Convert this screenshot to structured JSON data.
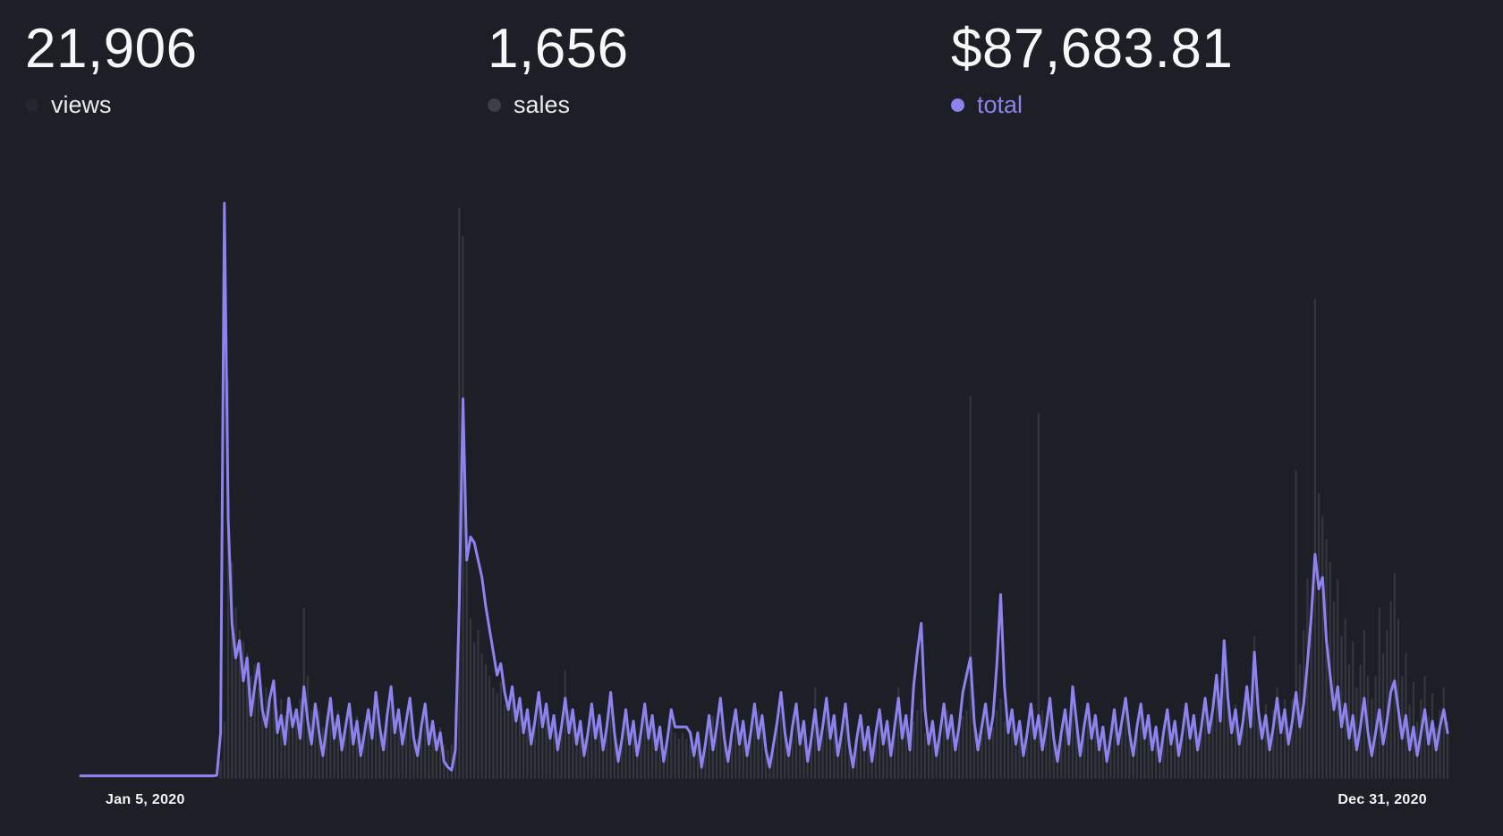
{
  "stats": [
    {
      "value": "21,906",
      "label": "views",
      "dot_color": "#25272e",
      "label_color": "#e9eaec"
    },
    {
      "value": "1,656",
      "label": "sales",
      "dot_color": "#3d3f48",
      "label_color": "#e9eaec"
    },
    {
      "value": "$87,683.81",
      "label": "total",
      "dot_color": "#8c82f0",
      "label_color": "#8c82ea"
    }
  ],
  "chart_data": {
    "type": "composed",
    "title": "",
    "legend": [
      "views",
      "sales",
      "total"
    ],
    "legend_position": "top",
    "grid": false,
    "x_axis": {
      "start_label": "Jan 5, 2020",
      "end_label": "Dec 31, 2020",
      "start_date": "2020-01-05",
      "end_date": "2020-12-31",
      "points": 362,
      "unit": "day"
    },
    "y_axis": {
      "visible": false,
      "note": "no y-axis ticks shown; series values digitized as percent of each series' own maximum"
    },
    "colors": {
      "views_bar": "#34363e",
      "total_line": "#8d82f0",
      "background": "#1d1f26"
    },
    "totals": {
      "views": 21906,
      "sales": 1656,
      "total_earned": "$87,683.81"
    },
    "series": [
      {
        "name": "views",
        "type": "bar",
        "values_pct_of_max": [
          0,
          0,
          0,
          0,
          0,
          0,
          0,
          0,
          0,
          0,
          0,
          0,
          0,
          0,
          0,
          0,
          0,
          0,
          0,
          0,
          0,
          0,
          0,
          0,
          0,
          0,
          0,
          0,
          0,
          0,
          0,
          0,
          0,
          0,
          0,
          0,
          0,
          3,
          10,
          70,
          38,
          30,
          26,
          24,
          22,
          18,
          20,
          16,
          14,
          16,
          13,
          15,
          12,
          14,
          11,
          13,
          10,
          12,
          14,
          30,
          18,
          12,
          10,
          12,
          9,
          11,
          13,
          10,
          12,
          8,
          10,
          12,
          9,
          11,
          8,
          10,
          12,
          9,
          13,
          10,
          8,
          11,
          13,
          9,
          11,
          8,
          10,
          12,
          9,
          7,
          10,
          12,
          8,
          10,
          7,
          9,
          6,
          5,
          6,
          12,
          100,
          95,
          40,
          28,
          24,
          26,
          22,
          20,
          18,
          16,
          15,
          17,
          13,
          12,
          14,
          11,
          13,
          10,
          12,
          9,
          11,
          14,
          10,
          12,
          9,
          11,
          8,
          10,
          19,
          12,
          11,
          8,
          10,
          7,
          9,
          12,
          8,
          10,
          7,
          9,
          12,
          8,
          6,
          8,
          11,
          7,
          9,
          6,
          8,
          11,
          7,
          9,
          6,
          8,
          5,
          7,
          10,
          8,
          7,
          8,
          7,
          6,
          5,
          7,
          4,
          6,
          9,
          11,
          8,
          10,
          7,
          5,
          7,
          10,
          6,
          8,
          5,
          7,
          10,
          12,
          9,
          6,
          4,
          6,
          9,
          12,
          8,
          5,
          8,
          11,
          6,
          9,
          5,
          7,
          16,
          9,
          8,
          11,
          7,
          9,
          5,
          7,
          10,
          6,
          4,
          6,
          9,
          5,
          8,
          4,
          7,
          10,
          6,
          8,
          5,
          8,
          16,
          10,
          9,
          6,
          10,
          12,
          14,
          8,
          6,
          8,
          5,
          7,
          10,
          12,
          10,
          7,
          9,
          11,
          12,
          67,
          14,
          8,
          9,
          11,
          7,
          9,
          12,
          14,
          10,
          8,
          10,
          6,
          8,
          5,
          8,
          10,
          8,
          64,
          12,
          9,
          12,
          8,
          6,
          8,
          11,
          7,
          13,
          9,
          6,
          9,
          11,
          7,
          10,
          6,
          8,
          5,
          7,
          11,
          6,
          9,
          12,
          8,
          5,
          8,
          11,
          7,
          10,
          6,
          8,
          5,
          7,
          10,
          6,
          9,
          5,
          8,
          11,
          7,
          10,
          8,
          10,
          13,
          10,
          14,
          18,
          12,
          20,
          15,
          10,
          13,
          9,
          12,
          16,
          11,
          25,
          15,
          10,
          13,
          8,
          12,
          16,
          11,
          14,
          9,
          14,
          54,
          20,
          26,
          35,
          30,
          84,
          50,
          46,
          42,
          38,
          31,
          35,
          25,
          28,
          20,
          24,
          16,
          20,
          26,
          18,
          14,
          18,
          30,
          22,
          26,
          31,
          36,
          28,
          18,
          22,
          13,
          17,
          10,
          14,
          18,
          11,
          15,
          9,
          12,
          16,
          10
        ]
      },
      {
        "name": "total",
        "type": "line",
        "values_pct_of_max": [
          0.5,
          0.5,
          0.5,
          0.5,
          0.5,
          0.5,
          0.5,
          0.5,
          0.5,
          0.5,
          0.5,
          0.5,
          0.5,
          0.5,
          0.5,
          0.5,
          0.5,
          0.5,
          0.5,
          0.5,
          0.5,
          0.5,
          0.5,
          0.5,
          0.5,
          0.5,
          0.5,
          0.5,
          0.5,
          0.5,
          0.5,
          0.5,
          0.5,
          0.5,
          0.5,
          0.5,
          0.6,
          8,
          100,
          45,
          27,
          21,
          24,
          17,
          21,
          11,
          16,
          20,
          12,
          9,
          14,
          17,
          8,
          11,
          6,
          14,
          9,
          12,
          7,
          16,
          10,
          6,
          13,
          8,
          4,
          9,
          14,
          7,
          11,
          5,
          9,
          13,
          6,
          10,
          4,
          8,
          12,
          7,
          15,
          9,
          5,
          11,
          16,
          8,
          12,
          6,
          10,
          14,
          7,
          4,
          9,
          13,
          6,
          10,
          5,
          8,
          3,
          2,
          1.5,
          5,
          30,
          66,
          38,
          42,
          41,
          38,
          35,
          30,
          26,
          22,
          18,
          20,
          15,
          12,
          16,
          10,
          14,
          8,
          12,
          6,
          10,
          15,
          9,
          13,
          7,
          11,
          5,
          9,
          14,
          8,
          12,
          6,
          10,
          4,
          8,
          13,
          7,
          11,
          5,
          9,
          15,
          8,
          3,
          7,
          12,
          6,
          10,
          4,
          8,
          13,
          7,
          11,
          5,
          9,
          3,
          7,
          12,
          9,
          9,
          9,
          9,
          8,
          4,
          8,
          2,
          6,
          11,
          5,
          9,
          14,
          7,
          3,
          8,
          12,
          6,
          10,
          4,
          8,
          13,
          7,
          11,
          5,
          2,
          6,
          10,
          15,
          8,
          4,
          9,
          13,
          6,
          10,
          3,
          7,
          12,
          5,
          9,
          14,
          7,
          11,
          4,
          8,
          13,
          6,
          2,
          7,
          11,
          5,
          9,
          3,
          8,
          12,
          6,
          10,
          4,
          9,
          14,
          7,
          11,
          5,
          16,
          22,
          27,
          12,
          6,
          10,
          4,
          8,
          13,
          7,
          11,
          5,
          9,
          15,
          18,
          21,
          10,
          5,
          9,
          13,
          7,
          11,
          20,
          32,
          16,
          8,
          12,
          6,
          10,
          4,
          8,
          13,
          7,
          11,
          5,
          9,
          14,
          7,
          3,
          8,
          12,
          6,
          16,
          10,
          4,
          9,
          13,
          7,
          11,
          5,
          9,
          3,
          7,
          12,
          6,
          10,
          14,
          8,
          4,
          9,
          13,
          7,
          11,
          5,
          9,
          3,
          8,
          12,
          6,
          10,
          4,
          8,
          13,
          7,
          11,
          5,
          9,
          14,
          8,
          12,
          18,
          10,
          24,
          14,
          8,
          12,
          6,
          10,
          16,
          9,
          22,
          12,
          7,
          11,
          5,
          9,
          14,
          8,
          12,
          6,
          10,
          15,
          9,
          13,
          20,
          28,
          39,
          33,
          35,
          24,
          18,
          12,
          16,
          9,
          13,
          7,
          11,
          5,
          9,
          14,
          8,
          4,
          8,
          12,
          6,
          10,
          15,
          17,
          12,
          7,
          11,
          5,
          9,
          4,
          8,
          12,
          6,
          10,
          5,
          9,
          12,
          8
        ]
      }
    ]
  }
}
